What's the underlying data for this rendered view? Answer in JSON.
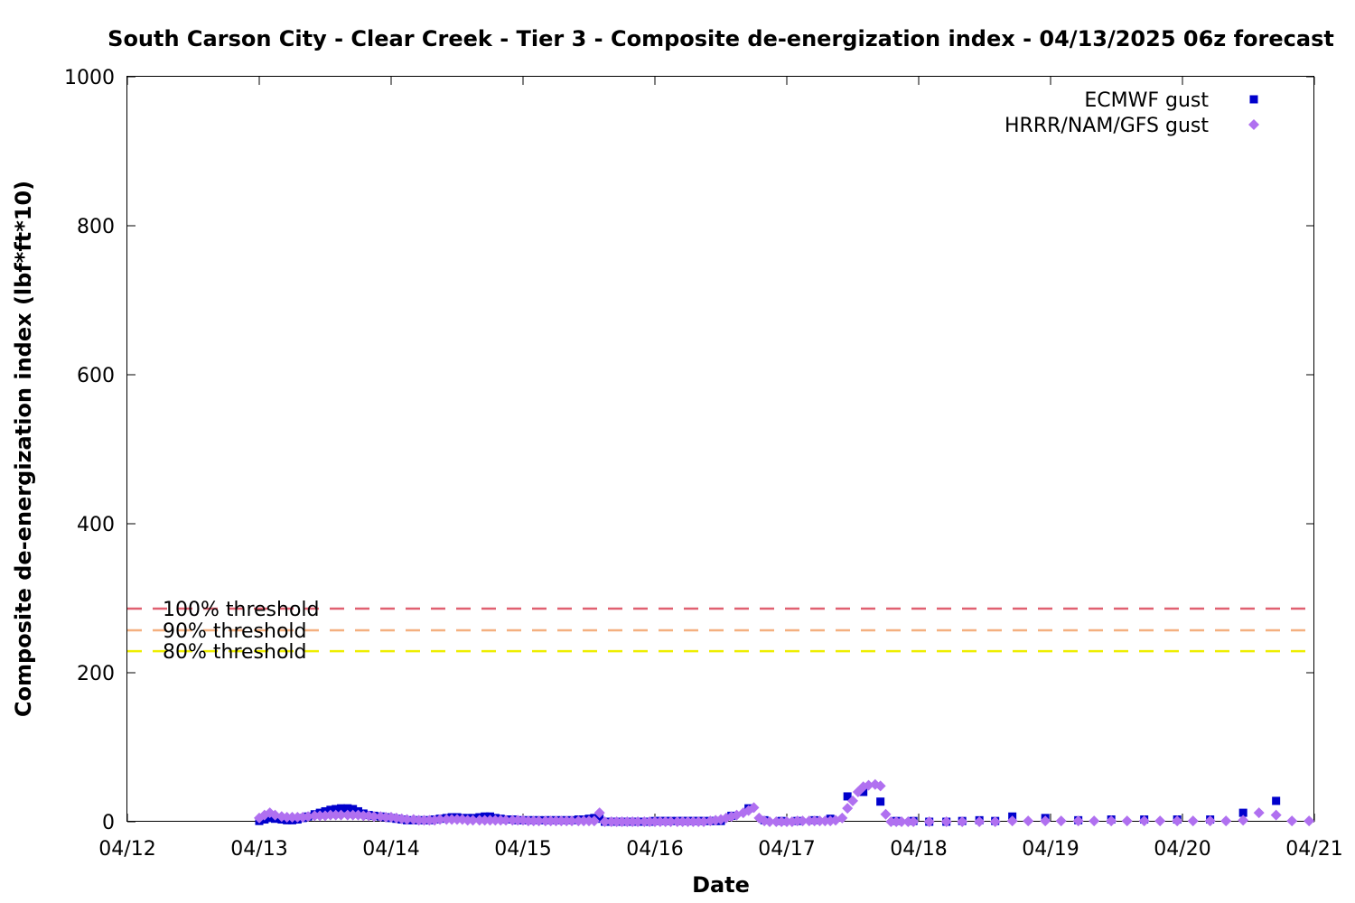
{
  "chart_data": {
    "type": "scatter",
    "title": "South Carson City - Clear Creek - Tier 3 - Composite de-energization index - 04/13/2025 06z forecast",
    "xlabel": "Date",
    "ylabel": "Composite de-energization index (lbf*ft*10)",
    "x_unit": "days since 04/12 00z",
    "xlim": [
      0,
      9
    ],
    "ylim": [
      0,
      1000
    ],
    "x_ticks": [
      {
        "value": 0,
        "label": "04/12"
      },
      {
        "value": 1,
        "label": "04/13"
      },
      {
        "value": 2,
        "label": "04/14"
      },
      {
        "value": 3,
        "label": "04/15"
      },
      {
        "value": 4,
        "label": "04/16"
      },
      {
        "value": 5,
        "label": "04/17"
      },
      {
        "value": 6,
        "label": "04/18"
      },
      {
        "value": 7,
        "label": "04/19"
      },
      {
        "value": 8,
        "label": "04/20"
      },
      {
        "value": 9,
        "label": "04/21"
      }
    ],
    "y_ticks": [
      0,
      200,
      400,
      600,
      800,
      1000
    ],
    "legend_position": "top-right",
    "grid": false,
    "thresholds": [
      {
        "label": "100% threshold",
        "value": 286,
        "color": "#e06070"
      },
      {
        "label": "90% threshold",
        "value": 257,
        "color": "#f4b080"
      },
      {
        "label": "80% threshold",
        "value": 229,
        "color": "#eeee00"
      }
    ],
    "series": [
      {
        "name": "ECMWF gust",
        "marker": "square",
        "color": "#0000cc",
        "points": [
          [
            1.0,
            1
          ],
          [
            1.04,
            3
          ],
          [
            1.08,
            5
          ],
          [
            1.12,
            4
          ],
          [
            1.17,
            3
          ],
          [
            1.21,
            2
          ],
          [
            1.25,
            2
          ],
          [
            1.29,
            3
          ],
          [
            1.33,
            5
          ],
          [
            1.37,
            7
          ],
          [
            1.42,
            10
          ],
          [
            1.46,
            12
          ],
          [
            1.5,
            14
          ],
          [
            1.54,
            16
          ],
          [
            1.58,
            17
          ],
          [
            1.62,
            18
          ],
          [
            1.67,
            18
          ],
          [
            1.71,
            17
          ],
          [
            1.75,
            14
          ],
          [
            1.79,
            11
          ],
          [
            1.83,
            9
          ],
          [
            1.87,
            8
          ],
          [
            1.92,
            7
          ],
          [
            1.96,
            6
          ],
          [
            2.0,
            5
          ],
          [
            2.04,
            4
          ],
          [
            2.08,
            3
          ],
          [
            2.12,
            2
          ],
          [
            2.17,
            2
          ],
          [
            2.21,
            2
          ],
          [
            2.25,
            2
          ],
          [
            2.29,
            2
          ],
          [
            2.33,
            3
          ],
          [
            2.37,
            4
          ],
          [
            2.42,
            5
          ],
          [
            2.46,
            6
          ],
          [
            2.5,
            6
          ],
          [
            2.54,
            5
          ],
          [
            2.58,
            5
          ],
          [
            2.62,
            5
          ],
          [
            2.67,
            6
          ],
          [
            2.71,
            7
          ],
          [
            2.75,
            7
          ],
          [
            2.79,
            5
          ],
          [
            2.83,
            4
          ],
          [
            2.87,
            3
          ],
          [
            2.92,
            3
          ],
          [
            2.96,
            2
          ],
          [
            3.0,
            2
          ],
          [
            3.04,
            2
          ],
          [
            3.08,
            2
          ],
          [
            3.12,
            2
          ],
          [
            3.17,
            2
          ],
          [
            3.21,
            2
          ],
          [
            3.25,
            2
          ],
          [
            3.29,
            2
          ],
          [
            3.33,
            2
          ],
          [
            3.37,
            2
          ],
          [
            3.42,
            3
          ],
          [
            3.46,
            3
          ],
          [
            3.5,
            4
          ],
          [
            3.54,
            5
          ],
          [
            3.58,
            4
          ],
          [
            3.62,
            0
          ],
          [
            3.67,
            0
          ],
          [
            3.71,
            0
          ],
          [
            3.75,
            0
          ],
          [
            3.79,
            0
          ],
          [
            3.83,
            0
          ],
          [
            3.87,
            0
          ],
          [
            3.92,
            0
          ],
          [
            3.96,
            0
          ],
          [
            4.0,
            1
          ],
          [
            4.04,
            1
          ],
          [
            4.08,
            1
          ],
          [
            4.12,
            1
          ],
          [
            4.17,
            1
          ],
          [
            4.21,
            1
          ],
          [
            4.25,
            1
          ],
          [
            4.29,
            1
          ],
          [
            4.33,
            1
          ],
          [
            4.37,
            1
          ],
          [
            4.42,
            1
          ],
          [
            4.46,
            1
          ],
          [
            4.5,
            1
          ],
          [
            4.58,
            8
          ],
          [
            4.71,
            18
          ],
          [
            4.83,
            2
          ],
          [
            4.96,
            1
          ],
          [
            5.08,
            1
          ],
          [
            5.21,
            2
          ],
          [
            5.33,
            4
          ],
          [
            5.46,
            34
          ],
          [
            5.58,
            40
          ],
          [
            5.71,
            27
          ],
          [
            5.83,
            1
          ],
          [
            5.96,
            1
          ],
          [
            6.08,
            0
          ],
          [
            6.21,
            0
          ],
          [
            6.33,
            1
          ],
          [
            6.46,
            2
          ],
          [
            6.58,
            1
          ],
          [
            6.71,
            7
          ],
          [
            6.96,
            5
          ],
          [
            7.21,
            2
          ],
          [
            7.46,
            3
          ],
          [
            7.71,
            3
          ],
          [
            7.96,
            3
          ],
          [
            8.21,
            3
          ],
          [
            8.46,
            12
          ],
          [
            8.71,
            28
          ]
        ]
      },
      {
        "name": "HRRR/NAM/GFS gust",
        "marker": "diamond",
        "color": "#b070f0",
        "points": [
          [
            1.0,
            5
          ],
          [
            1.04,
            9
          ],
          [
            1.08,
            12
          ],
          [
            1.12,
            9
          ],
          [
            1.17,
            7
          ],
          [
            1.21,
            6
          ],
          [
            1.25,
            6
          ],
          [
            1.29,
            6
          ],
          [
            1.33,
            6
          ],
          [
            1.37,
            7
          ],
          [
            1.42,
            8
          ],
          [
            1.46,
            8
          ],
          [
            1.5,
            8
          ],
          [
            1.54,
            9
          ],
          [
            1.58,
            9
          ],
          [
            1.62,
            9
          ],
          [
            1.67,
            9
          ],
          [
            1.71,
            9
          ],
          [
            1.75,
            9
          ],
          [
            1.79,
            8
          ],
          [
            1.83,
            8
          ],
          [
            1.87,
            7
          ],
          [
            1.92,
            7
          ],
          [
            1.96,
            6
          ],
          [
            2.0,
            6
          ],
          [
            2.04,
            5
          ],
          [
            2.08,
            4
          ],
          [
            2.12,
            3
          ],
          [
            2.17,
            3
          ],
          [
            2.21,
            2
          ],
          [
            2.25,
            2
          ],
          [
            2.29,
            2
          ],
          [
            2.33,
            2
          ],
          [
            2.37,
            3
          ],
          [
            2.42,
            3
          ],
          [
            2.46,
            3
          ],
          [
            2.5,
            3
          ],
          [
            2.54,
            3
          ],
          [
            2.58,
            2
          ],
          [
            2.62,
            2
          ],
          [
            2.67,
            2
          ],
          [
            2.71,
            2
          ],
          [
            2.75,
            2
          ],
          [
            2.79,
            2
          ],
          [
            2.83,
            2
          ],
          [
            2.87,
            2
          ],
          [
            2.92,
            2
          ],
          [
            2.96,
            2
          ],
          [
            3.0,
            2
          ],
          [
            3.04,
            1
          ],
          [
            3.08,
            1
          ],
          [
            3.12,
            1
          ],
          [
            3.17,
            1
          ],
          [
            3.21,
            1
          ],
          [
            3.25,
            1
          ],
          [
            3.29,
            1
          ],
          [
            3.33,
            1
          ],
          [
            3.37,
            1
          ],
          [
            3.42,
            1
          ],
          [
            3.46,
            1
          ],
          [
            3.5,
            1
          ],
          [
            3.54,
            1
          ],
          [
            3.58,
            12
          ],
          [
            3.62,
            0
          ],
          [
            3.67,
            0
          ],
          [
            3.71,
            0
          ],
          [
            3.75,
            0
          ],
          [
            3.79,
            0
          ],
          [
            3.83,
            0
          ],
          [
            3.87,
            0
          ],
          [
            3.92,
            0
          ],
          [
            3.96,
            0
          ],
          [
            4.0,
            0
          ],
          [
            4.04,
            0
          ],
          [
            4.08,
            0
          ],
          [
            4.12,
            0
          ],
          [
            4.17,
            0
          ],
          [
            4.21,
            0
          ],
          [
            4.25,
            0
          ],
          [
            4.29,
            0
          ],
          [
            4.33,
            0
          ],
          [
            4.37,
            0
          ],
          [
            4.42,
            1
          ],
          [
            4.46,
            2
          ],
          [
            4.5,
            3
          ],
          [
            4.54,
            5
          ],
          [
            4.58,
            7
          ],
          [
            4.62,
            9
          ],
          [
            4.67,
            12
          ],
          [
            4.71,
            15
          ],
          [
            4.75,
            19
          ],
          [
            4.79,
            5
          ],
          [
            4.83,
            1
          ],
          [
            4.87,
            0
          ],
          [
            4.92,
            0
          ],
          [
            4.96,
            0
          ],
          [
            5.0,
            0
          ],
          [
            5.04,
            0
          ],
          [
            5.08,
            1
          ],
          [
            5.12,
            1
          ],
          [
            5.17,
            1
          ],
          [
            5.21,
            1
          ],
          [
            5.25,
            1
          ],
          [
            5.29,
            1
          ],
          [
            5.33,
            1
          ],
          [
            5.37,
            2
          ],
          [
            5.42,
            5
          ],
          [
            5.46,
            18
          ],
          [
            5.5,
            28
          ],
          [
            5.54,
            40
          ],
          [
            5.58,
            47
          ],
          [
            5.62,
            49
          ],
          [
            5.67,
            50
          ],
          [
            5.71,
            48
          ],
          [
            5.75,
            10
          ],
          [
            5.79,
            0
          ],
          [
            5.83,
            0
          ],
          [
            5.87,
            0
          ],
          [
            5.92,
            0
          ],
          [
            5.96,
            0
          ],
          [
            6.08,
            0
          ],
          [
            6.21,
            0
          ],
          [
            6.33,
            0
          ],
          [
            6.46,
            0
          ],
          [
            6.58,
            0
          ],
          [
            6.71,
            1
          ],
          [
            6.83,
            1
          ],
          [
            6.96,
            1
          ],
          [
            7.08,
            1
          ],
          [
            7.21,
            1
          ],
          [
            7.33,
            1
          ],
          [
            7.46,
            1
          ],
          [
            7.58,
            1
          ],
          [
            7.71,
            1
          ],
          [
            7.83,
            1
          ],
          [
            7.96,
            1
          ],
          [
            8.08,
            1
          ],
          [
            8.21,
            1
          ],
          [
            8.33,
            1
          ],
          [
            8.46,
            2
          ],
          [
            8.58,
            12
          ],
          [
            8.71,
            9
          ],
          [
            8.83,
            1
          ],
          [
            8.96,
            1
          ]
        ]
      }
    ]
  }
}
